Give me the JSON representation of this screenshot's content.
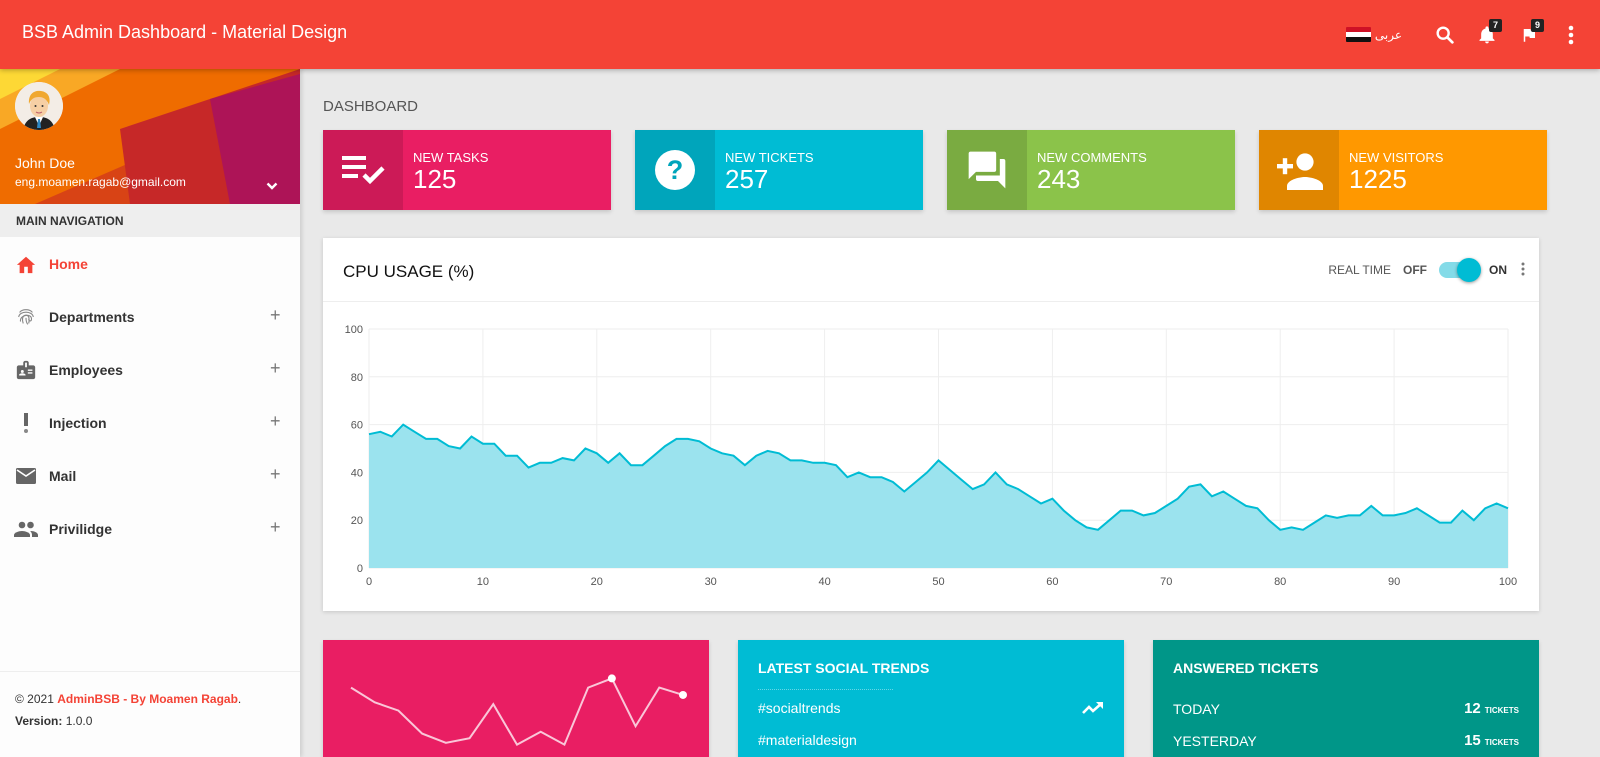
{
  "topbar": {
    "title": "BSB Admin Dashboard - Material Design",
    "language_label": "عربى",
    "notifications_count": "7",
    "tasks_count": "9",
    "colors": {
      "primary": "#f44336"
    }
  },
  "sidebar": {
    "user": {
      "name": "John Doe",
      "email": "eng.moamen.ragab@gmail.com"
    },
    "nav_header": "MAIN NAVIGATION",
    "items": [
      {
        "label": "Home",
        "icon": "home-icon",
        "active": true
      },
      {
        "label": "Departments",
        "icon": "fingerprint-icon",
        "expand": "+"
      },
      {
        "label": "Employees",
        "icon": "badge-icon",
        "expand": "+"
      },
      {
        "label": "Injection",
        "icon": "exclamation-icon",
        "expand": "+"
      },
      {
        "label": "Mail",
        "icon": "mail-icon",
        "expand": "+"
      },
      {
        "label": "Privilidge",
        "icon": "people-icon",
        "expand": "+"
      }
    ],
    "footer": {
      "copyright_prefix": "© 2021 ",
      "copyright_link": "AdminBSB - By Moamen Ragab",
      "copyright_suffix": ".",
      "version_label": "Version:",
      "version_value": " 1.0.0"
    }
  },
  "main": {
    "page_title": "DASHBOARD",
    "info_boxes": [
      {
        "label": "NEW TASKS",
        "value": "125",
        "icon": "playlist-check-icon",
        "color": "#e91e63",
        "icon_bg": "#cc1a57"
      },
      {
        "label": "NEW TICKETS",
        "value": "257",
        "icon": "help-icon",
        "color": "#00bcd4",
        "icon_bg": "#00a5bb"
      },
      {
        "label": "NEW COMMENTS",
        "value": "243",
        "icon": "forum-icon",
        "color": "#8bc34a",
        "icon_bg": "#7aab41"
      },
      {
        "label": "NEW VISITORS",
        "value": "1225",
        "icon": "person-add-icon",
        "color": "#ff9800",
        "icon_bg": "#e08600"
      }
    ],
    "cpu_card": {
      "title": "CPU USAGE (%)",
      "realtime_label": "REAL TIME",
      "off_label": "OFF",
      "on_label": "ON",
      "realtime_on": true
    },
    "social_trends": {
      "title": "LATEST SOCIAL TRENDS",
      "items": [
        {
          "tag": "#socialtrends"
        },
        {
          "tag": "#materialdesign"
        }
      ]
    },
    "answered_tickets": {
      "title": "ANSWERED TICKETS",
      "rows": [
        {
          "label": "TODAY",
          "value": "12",
          "unit": "TICKETS"
        },
        {
          "label": "YESTERDAY",
          "value": "15",
          "unit": "TICKETS"
        }
      ]
    }
  },
  "chart_data": [
    {
      "type": "area",
      "title": "CPU USAGE (%)",
      "xlabel": "",
      "ylabel": "",
      "xlim": [
        0,
        100
      ],
      "ylim": [
        0,
        100
      ],
      "xticks": [
        0,
        10,
        20,
        30,
        40,
        50,
        60,
        70,
        80,
        90,
        100
      ],
      "yticks": [
        0,
        20,
        40,
        60,
        80,
        100
      ],
      "grid": true,
      "color": "#00bcd4",
      "fill": "#9be3ee",
      "x": [
        0,
        1,
        2,
        3,
        4,
        5,
        6,
        7,
        8,
        9,
        10,
        11,
        12,
        13,
        14,
        15,
        16,
        17,
        18,
        19,
        20,
        21,
        22,
        23,
        24,
        25,
        26,
        27,
        28,
        29,
        30,
        31,
        32,
        33,
        34,
        35,
        36,
        37,
        38,
        39,
        40,
        41,
        42,
        43,
        44,
        45,
        46,
        47,
        48,
        49,
        50,
        51,
        52,
        53,
        54,
        55,
        56,
        57,
        58,
        59,
        60,
        61,
        62,
        63,
        64,
        65,
        66,
        67,
        68,
        69,
        70,
        71,
        72,
        73,
        74,
        75,
        76,
        77,
        78,
        79,
        80,
        81,
        82,
        83,
        84,
        85,
        86,
        87,
        88,
        89,
        90,
        91,
        92,
        93,
        94,
        95,
        96,
        97,
        98,
        99,
        100
      ],
      "values": [
        56,
        57,
        55,
        60,
        57,
        54,
        54,
        51,
        50,
        55,
        52,
        52,
        47,
        47,
        42,
        44,
        44,
        46,
        45,
        50,
        48,
        44,
        48,
        43,
        43,
        47,
        51,
        54,
        54,
        53,
        50,
        48,
        47,
        43,
        47,
        49,
        48,
        45,
        45,
        44,
        44,
        43,
        38,
        40,
        38,
        38,
        36,
        32,
        36,
        40,
        45,
        41,
        37,
        33,
        35,
        40,
        35,
        33,
        30,
        27,
        29,
        24,
        20,
        17,
        16,
        20,
        24,
        24,
        22,
        23,
        26,
        29,
        34,
        35,
        30,
        32,
        29,
        26,
        25,
        20,
        16,
        17,
        16,
        19,
        22,
        21,
        22,
        22,
        26,
        22,
        22,
        23,
        25,
        22,
        19,
        19,
        24,
        20,
        25,
        27,
        25
      ]
    },
    {
      "type": "line",
      "title": "",
      "color": "#ffffff",
      "note": "sparkline in pink card (partially visible)",
      "values": [
        70,
        54,
        45,
        20,
        10,
        15,
        52,
        8,
        22,
        8,
        70,
        80,
        28,
        70,
        62
      ]
    }
  ]
}
